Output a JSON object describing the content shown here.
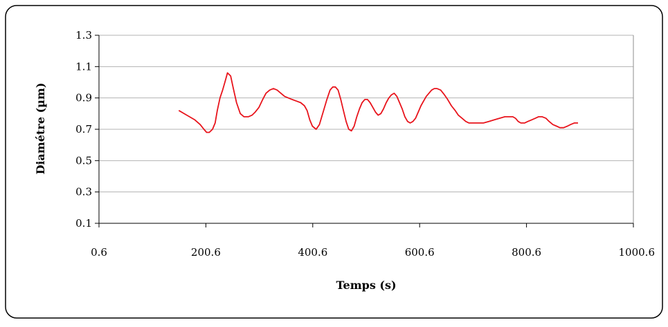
{
  "chart_data": {
    "type": "line",
    "xlabel": "Temps (s)",
    "ylabel": "Diamétre (µm)",
    "xlim": [
      0.6,
      1000.6
    ],
    "ylim": [
      0.1,
      1.3
    ],
    "xticks": [
      0.6,
      200.6,
      400.6,
      600.6,
      800.6,
      1000.6
    ],
    "xtick_labels": [
      "0.6",
      "200.6",
      "400.6",
      "600.6",
      "800.6",
      "1000.6"
    ],
    "yticks": [
      0.1,
      0.3,
      0.5,
      0.7,
      0.9,
      1.1,
      1.3
    ],
    "ytick_labels": [
      "0.1",
      "0.3",
      "0.5",
      "0.7",
      "0.9",
      "1.1",
      "1.3"
    ],
    "grid": "horizontal",
    "line_color": "#e8141c",
    "series": [
      {
        "x": [
          150,
          165,
          180,
          190,
          197,
          202,
          207,
          213,
          218,
          222,
          227,
          232,
          237,
          241,
          247,
          252,
          258,
          265,
          272,
          280,
          287,
          293,
          300,
          307,
          313,
          320,
          327,
          334,
          341,
          348,
          355,
          362,
          370,
          378,
          385,
          390,
          395,
          400,
          407,
          413,
          420,
          427,
          433,
          438,
          443,
          448,
          453,
          458,
          463,
          468,
          473,
          478,
          483,
          488,
          493,
          498,
          503,
          508,
          513,
          518,
          523,
          528,
          533,
          538,
          543,
          548,
          553,
          558,
          563,
          568,
          573,
          578,
          583,
          588,
          593,
          598,
          603,
          608,
          613,
          618,
          623,
          628,
          633,
          640,
          647,
          653,
          660,
          667,
          673,
          680,
          687,
          693,
          700,
          707,
          713,
          720,
          730,
          740,
          750,
          760,
          770,
          775,
          780,
          785,
          790,
          797,
          803,
          810,
          817,
          823,
          830,
          837,
          843,
          850,
          857,
          863,
          870,
          877,
          883,
          890,
          897
        ],
        "y": [
          0.82,
          0.79,
          0.76,
          0.73,
          0.7,
          0.68,
          0.68,
          0.7,
          0.74,
          0.82,
          0.9,
          0.95,
          1.01,
          1.06,
          1.04,
          0.96,
          0.87,
          0.8,
          0.78,
          0.78,
          0.79,
          0.81,
          0.84,
          0.89,
          0.93,
          0.95,
          0.96,
          0.95,
          0.93,
          0.91,
          0.9,
          0.89,
          0.88,
          0.87,
          0.85,
          0.82,
          0.76,
          0.72,
          0.7,
          0.73,
          0.81,
          0.89,
          0.95,
          0.97,
          0.97,
          0.95,
          0.89,
          0.82,
          0.75,
          0.7,
          0.69,
          0.72,
          0.78,
          0.83,
          0.87,
          0.89,
          0.89,
          0.87,
          0.84,
          0.81,
          0.79,
          0.8,
          0.83,
          0.87,
          0.9,
          0.92,
          0.93,
          0.91,
          0.87,
          0.83,
          0.78,
          0.75,
          0.74,
          0.75,
          0.77,
          0.81,
          0.85,
          0.88,
          0.91,
          0.93,
          0.95,
          0.96,
          0.96,
          0.95,
          0.92,
          0.89,
          0.85,
          0.82,
          0.79,
          0.77,
          0.75,
          0.74,
          0.74,
          0.74,
          0.74,
          0.74,
          0.75,
          0.76,
          0.77,
          0.78,
          0.78,
          0.78,
          0.77,
          0.75,
          0.74,
          0.74,
          0.75,
          0.76,
          0.77,
          0.78,
          0.78,
          0.77,
          0.75,
          0.73,
          0.72,
          0.71,
          0.71,
          0.72,
          0.73,
          0.74,
          0.74
        ]
      }
    ]
  }
}
